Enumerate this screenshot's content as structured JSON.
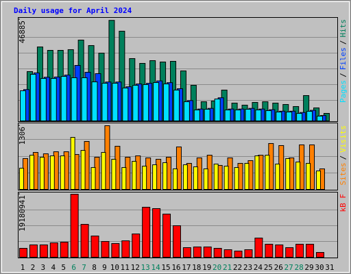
{
  "chart_data": {
    "type": "bar",
    "title": "Daily usage for April 2024",
    "categories": [
      "1",
      "2",
      "3",
      "4",
      "5",
      "6",
      "7",
      "8",
      "9",
      "10",
      "11",
      "12",
      "13",
      "14",
      "15",
      "16",
      "17",
      "18",
      "19",
      "20",
      "21",
      "22",
      "23",
      "24",
      "25",
      "26",
      "27",
      "28",
      "29",
      "30",
      "31"
    ],
    "category_color": "#000000",
    "weekend_color": "#00805c",
    "weekend_indices": [
      5,
      6,
      12,
      13,
      19,
      20,
      26,
      27
    ],
    "separator": "/",
    "panels": [
      {
        "ylim": [
          0,
          46885
        ],
        "yticks": [
          46885
        ],
        "series": [
          {
            "name": "Pages",
            "color": "#00e0ff",
            "values": [
              13940,
              21540,
              19640,
              19640,
              20590,
              19960,
              19960,
              18060,
              17420,
              17420,
              15210,
              16470,
              16790,
              17740,
              17110,
              14260,
              8870,
              5070,
              5390,
              10140,
              5070,
              5070,
              5390,
              5070,
              4750,
              4120,
              4120,
              3480,
              4440,
              2220,
              null
            ]
          },
          {
            "name": "Files",
            "color": "#0040ff",
            "values": [
              14500,
              22200,
              20200,
              20300,
              21200,
              25660,
              22500,
              21860,
              18000,
              18000,
              15800,
              17100,
              17400,
              18500,
              17700,
              14900,
              9400,
              5500,
              5800,
              10700,
              5500,
              5500,
              5800,
              5500,
              5200,
              4500,
              4500,
              3900,
              4900,
              2500,
              null
            ]
          },
          {
            "name": "Hits",
            "color": "#00805c",
            "values": [
              22810,
              34210,
              32630,
              32630,
              32950,
              37380,
              34850,
              31360,
              46500,
              41500,
              28830,
              26610,
              27880,
              27240,
              27560,
              23130,
              16470,
              8870,
              9190,
              14260,
              8240,
              7290,
              8550,
              8870,
              8240,
              7600,
              6650,
              11720,
              6020,
              3480,
              null
            ]
          }
        ]
      },
      {
        "ylim": [
          0,
          1306
        ],
        "yticks": [
          1306
        ],
        "series": [
          {
            "name": "Sites",
            "color": "#ff8000",
            "values": [
              632,
              758,
              730,
              772,
              772,
              716,
              983,
              660,
              1306,
              885,
              660,
              688,
              646,
              618,
              660,
              871,
              534,
              646,
              702,
              492,
              646,
              534,
              590,
              702,
              941,
              899,
              646,
              913,
              913,
              421,
              null
            ]
          },
          {
            "name": "Visits",
            "color": "#ffff00",
            "values": [
              435,
              702,
              660,
              688,
              688,
              1067,
              800,
              449,
              758,
              618,
              449,
              576,
              477,
              505,
              548,
              421,
              505,
              463,
              421,
              520,
              477,
              449,
              534,
              688,
              702,
              520,
              632,
              562,
              534,
              379,
              null
            ]
          }
        ]
      },
      {
        "ylim": [
          0,
          19180941
        ],
        "yticks": [
          19180941
        ],
        "series": [
          {
            "name": "kB F",
            "color": "#ff0000",
            "values": [
              2710000,
              3750000,
              3750000,
              4380000,
              4590000,
              19180941,
              10010000,
              6460000,
              4800000,
              4170000,
              5000000,
              7090000,
              15220000,
              14800000,
              13130000,
              9590000,
              2920000,
              3130000,
              3130000,
              2710000,
              2290000,
              1880000,
              2290000,
              5840000,
              3960000,
              3750000,
              2920000,
              3960000,
              3960000,
              1460000,
              null
            ]
          }
        ]
      }
    ]
  }
}
